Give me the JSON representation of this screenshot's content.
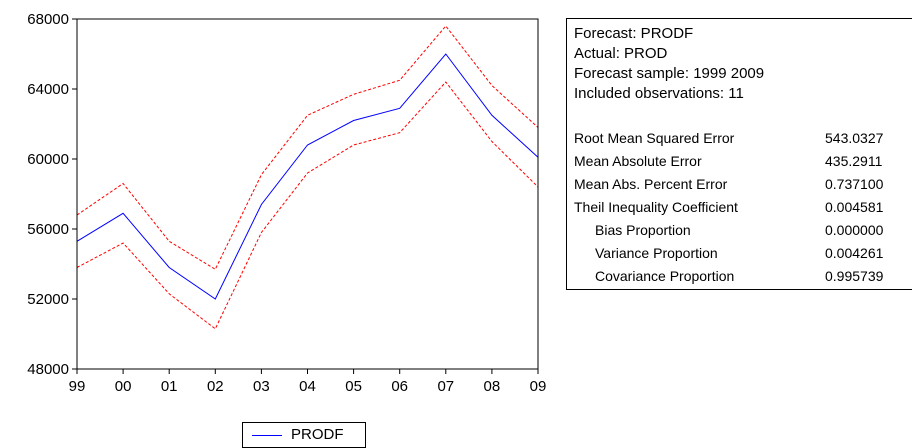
{
  "chart_data": {
    "type": "line",
    "x": [
      "99",
      "00",
      "01",
      "02",
      "03",
      "04",
      "05",
      "06",
      "07",
      "08",
      "09"
    ],
    "ylim": [
      48000,
      68000
    ],
    "yticks": [
      "48000",
      "52000",
      "56000",
      "60000",
      "64000",
      "68000"
    ],
    "series": [
      {
        "name": "PRODF",
        "color": "#0000ff",
        "style": "solid",
        "values": [
          55300,
          56900,
          53800,
          52000,
          57400,
          60800,
          62200,
          62900,
          66000,
          62500,
          60100
        ]
      },
      {
        "name": "",
        "color": "#ff0000",
        "style": "dashed",
        "values": [
          56800,
          58600,
          55300,
          53700,
          59100,
          62500,
          63700,
          64500,
          67600,
          64200,
          61800
        ]
      },
      {
        "name": "",
        "color": "#ff0000",
        "style": "dashed",
        "values": [
          53800,
          55200,
          52300,
          50300,
          55800,
          59200,
          60800,
          61500,
          64400,
          61000,
          58400
        ]
      }
    ],
    "legend": {
      "position": "bottom",
      "entries": [
        "PRODF"
      ]
    }
  },
  "stats": {
    "info_lines": [
      "Forecast: PRODF",
      "Actual: PROD",
      "Forecast sample: 1999 2009",
      "Included observations: 11"
    ],
    "metrics": [
      {
        "label": "Root Mean Squared Error",
        "value": "543.0327",
        "indent": false
      },
      {
        "label": "Mean Absolute Error",
        "value": "435.2911",
        "indent": false
      },
      {
        "label": "Mean Abs. Percent Error",
        "value": "0.737100",
        "indent": false
      },
      {
        "label": "Theil Inequality Coefficient",
        "value": "0.004581",
        "indent": false
      },
      {
        "label": "Bias Proportion",
        "value": "0.000000",
        "indent": true
      },
      {
        "label": "Variance Proportion",
        "value": "0.004261",
        "indent": true
      },
      {
        "label": "Covariance Proportion",
        "value": "0.995739",
        "indent": true
      }
    ]
  }
}
